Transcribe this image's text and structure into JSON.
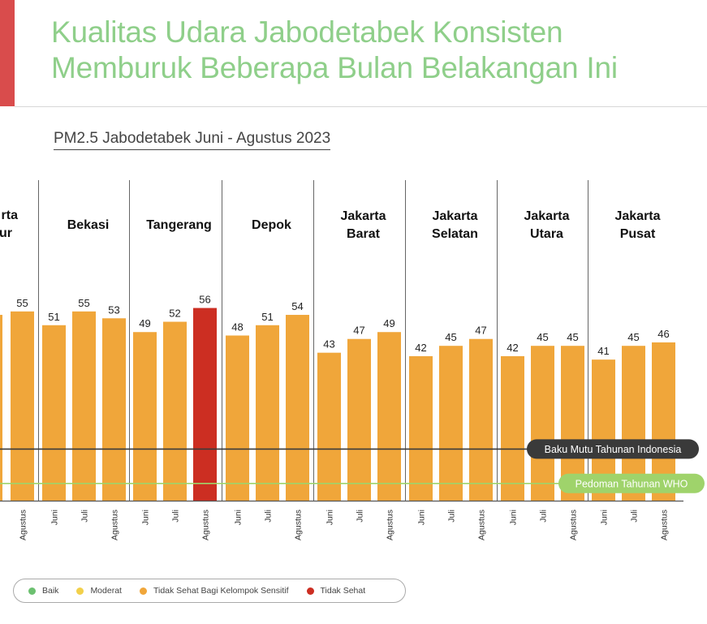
{
  "header": {
    "title_line1": "Kualitas Udara Jabodetabek Konsisten",
    "title_line2": "Memburuk Beberapa Bulan Belakangan Ini",
    "subtitle": "PM2.5 Jabodetabek Juni - Agustus 2023"
  },
  "colors": {
    "accent": "#d94c4c",
    "title": "#8fcf8a",
    "baik": "#6cc070",
    "moderat": "#f2d04b",
    "tidak_sehat_sensitif": "#f0a63a",
    "tidak_sehat": "#cc2e22",
    "baku_mutu": "#3a3a3a",
    "who": "#9fd36b"
  },
  "legend": [
    {
      "label": "Baik",
      "color": "#6cc070"
    },
    {
      "label": "Moderat",
      "color": "#f2d04b"
    },
    {
      "label": "Tidak Sehat Bagi Kelompok Sensitif",
      "color": "#f0a63a"
    },
    {
      "label": "Tidak Sehat",
      "color": "#cc2e22"
    }
  ],
  "chart_data": {
    "type": "bar",
    "title": "PM2.5 Jabodetabek Juni - Agustus 2023",
    "months": [
      "Juni",
      "Juli",
      "Agustus"
    ],
    "groups": [
      {
        "name": [
          "Jakarta",
          "Timur"
        ],
        "visible_name": [
          "rta",
          "ur"
        ],
        "values": [
          null,
          null,
          55
        ],
        "categories": [
          "",
          "",
          "Agustus"
        ]
      },
      {
        "name": [
          "Bekasi"
        ],
        "values": [
          51,
          55,
          53
        ],
        "categories": [
          "Juni",
          "Juli",
          "Agustus"
        ]
      },
      {
        "name": [
          "Tangerang"
        ],
        "values": [
          49,
          52,
          56
        ],
        "categories": [
          "Juni",
          "Juli",
          "Agustus"
        ]
      },
      {
        "name": [
          "Depok"
        ],
        "values": [
          48,
          51,
          54
        ],
        "categories": [
          "Juni",
          "Juli",
          "Agustus"
        ]
      },
      {
        "name": [
          "Jakarta",
          "Barat"
        ],
        "values": [
          43,
          47,
          49
        ],
        "categories": [
          "Juni",
          "Juli",
          "Agustus"
        ]
      },
      {
        "name": [
          "Jakarta",
          "Selatan"
        ],
        "values": [
          42,
          45,
          47
        ],
        "categories": [
          "Juni",
          "Juli",
          "Agustus"
        ]
      },
      {
        "name": [
          "Jakarta",
          "Utara"
        ],
        "values": [
          42,
          45,
          45
        ],
        "categories": [
          "Juni",
          "Juli",
          "Agustus"
        ]
      },
      {
        "name": [
          "Jakarta",
          "Pusat"
        ],
        "values": [
          41,
          45,
          46
        ],
        "categories": [
          "Juni",
          "Juli",
          "Agustus"
        ]
      }
    ],
    "unhealthy_threshold": 55.5,
    "reference_lines": [
      {
        "label": "Baku Mutu Tahunan Indonesia",
        "value": 15
      },
      {
        "label": "Pedoman Tahunan WHO",
        "value": 5
      }
    ],
    "ylim": [
      0,
      60
    ]
  }
}
